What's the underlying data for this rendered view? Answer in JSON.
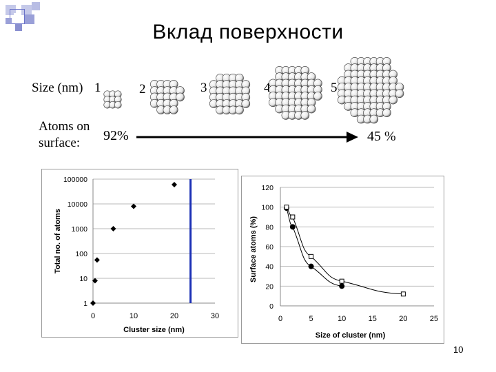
{
  "slide": {
    "title": "Вклад поверхности",
    "page_number": "10"
  },
  "clusters_figure": {
    "size_label": "Size (nm)",
    "sizes": [
      "1",
      "2",
      "3",
      "4",
      "5"
    ],
    "atoms_label": "Atoms on\nsurface:",
    "start_percent": "92%",
    "end_percent": "45 %"
  },
  "chart_data": [
    {
      "type": "scatter",
      "xlabel": "Cluster size (nm)",
      "ylabel": "Total no. of atoms",
      "xlim": [
        0,
        30
      ],
      "ylim": [
        1,
        100000
      ],
      "yscale": "log",
      "x_ticks": [
        "0",
        "10",
        "20",
        "30"
      ],
      "y_ticks": [
        "1",
        "10",
        "100",
        "1000",
        "10000",
        "100000"
      ],
      "grid": "horizontal",
      "series": [
        {
          "x": [
            0,
            0.5,
            1,
            5,
            10,
            20
          ],
          "y": [
            1,
            8,
            55,
            1000,
            8000,
            60000
          ]
        }
      ],
      "vline_x": 24,
      "vline_color": "#1a2fb5"
    },
    {
      "type": "line",
      "xlabel": "Size of cluster (nm)",
      "ylabel": "Surface atoms (%)",
      "xlim": [
        0,
        25
      ],
      "ylim": [
        0,
        120
      ],
      "x_ticks": [
        "0",
        "5",
        "10",
        "15",
        "20",
        "25"
      ],
      "y_ticks": [
        "0",
        "20",
        "40",
        "60",
        "80",
        "100",
        "120"
      ],
      "grid": "horizontal",
      "series": [
        {
          "marker": "filled-circle",
          "x": [
            1,
            2,
            5,
            10
          ],
          "y": [
            99,
            80,
            40,
            20
          ]
        },
        {
          "marker": "open-square",
          "x": [
            1,
            2,
            5,
            10,
            20
          ],
          "y": [
            100,
            90,
            50,
            25,
            12
          ]
        }
      ]
    }
  ]
}
